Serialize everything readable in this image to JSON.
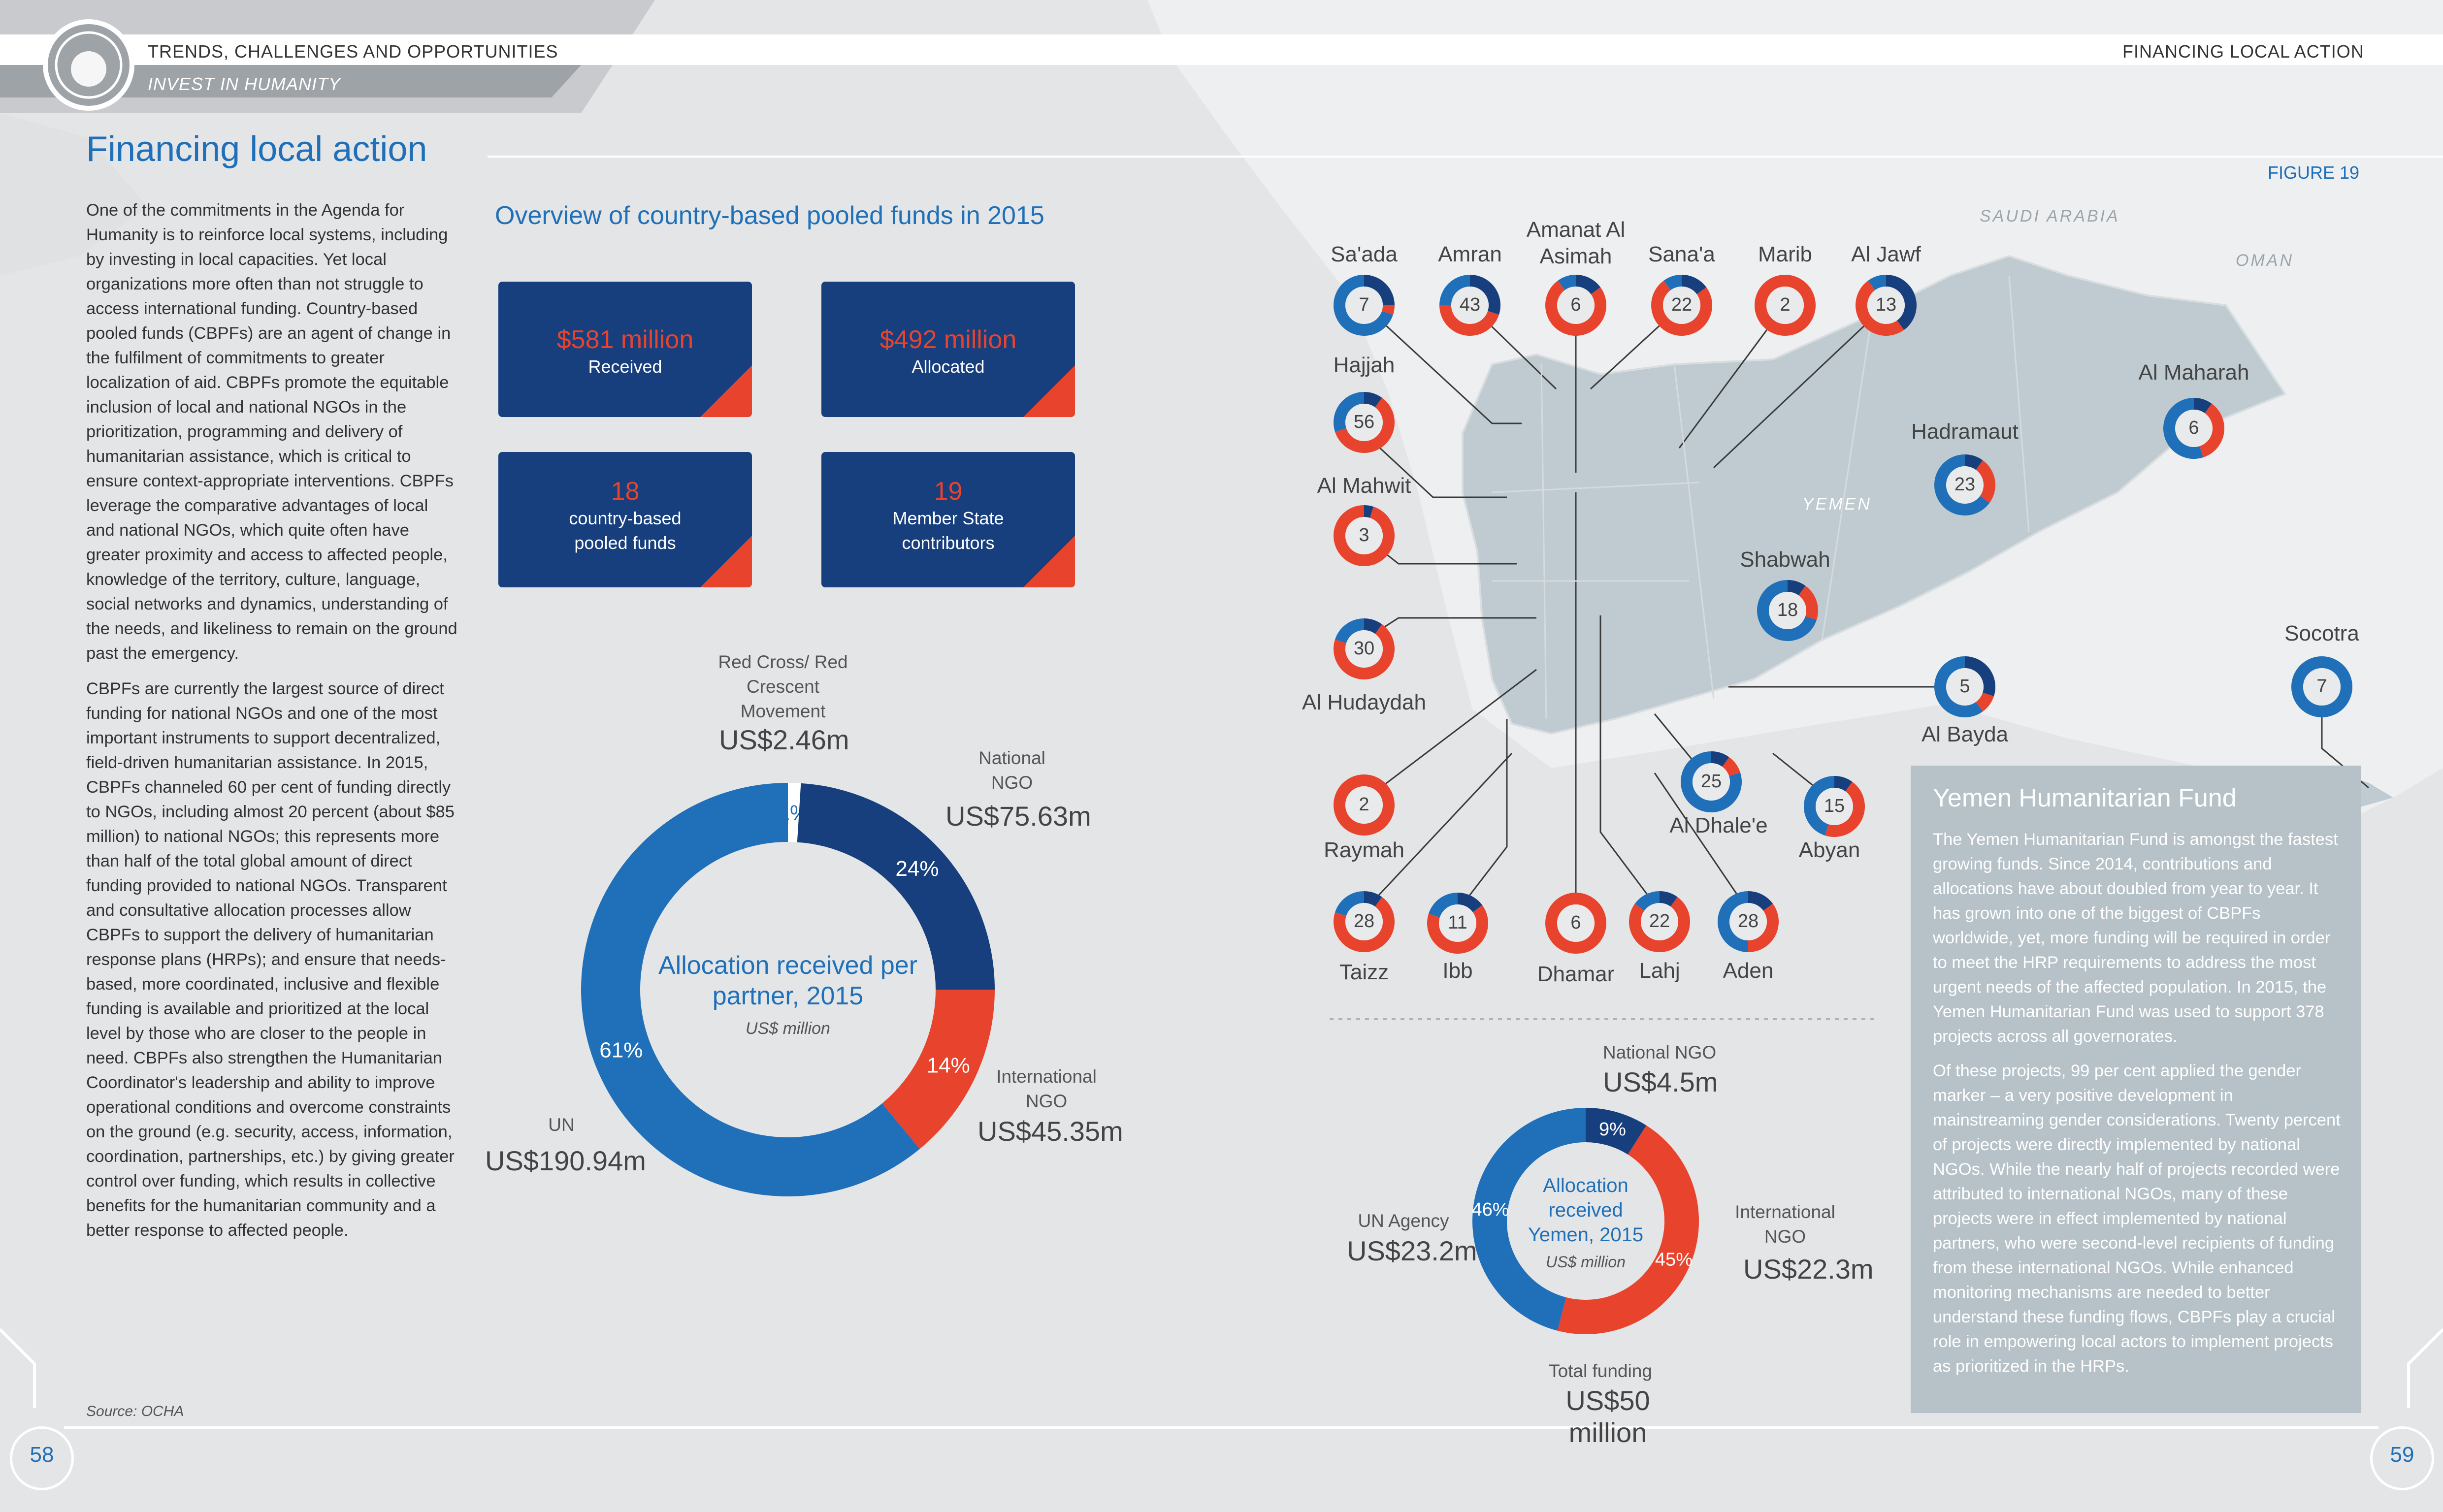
{
  "header": {
    "left_section": "TRENDS, CHALLENGES AND OPPORTUNITIES",
    "left_subsection": "INVEST IN HUMANITY",
    "right_section": "FINANCING LOCAL ACTION"
  },
  "colors": {
    "dark_blue": "#173f7e",
    "mid_blue": "#1f6fb9",
    "red": "#e8432d",
    "title_blue": "#1f70b8",
    "panel_grey": "#b6c2c8"
  },
  "page": {
    "title": "Financing local action",
    "body_p1": "One of the commitments in the Agenda for Humanity is to reinforce local systems, including by investing in local capacities. Yet local organizations more often than not struggle to access international funding. Country-based pooled funds (CBPFs) are an agent of change in the fulfilment of commitments to greater localization of aid. CBPFs promote the equitable inclusion of local and national NGOs in the prioritization, programming and delivery of humanitarian assistance, which is critical to ensure context-appropriate interventions. CBPFs leverage the comparative advantages of local and national NGOs, which quite often have greater proximity and access to affected people, knowledge of the territory, culture, language, social networks and dynamics, understanding of the needs, and likeliness to remain on the ground past the emergency.",
    "body_p2": "CBPFs are currently the largest source of direct funding for national NGOs and one of the most important instruments to support decentralized, field-driven humanitarian assistance. In 2015, CBPFs channeled 60 per cent of funding directly to NGOs, including almost 20 percent (about $85 million) to national NGOs; this represents more than half of the total global amount of direct funding provided to national NGOs. Transparent and consultative allocation processes allow CBPFs to support the delivery of humanitarian response plans (HRPs); and ensure that needs-based, more coordinated, inclusive and flexible funding is available and prioritized at the local level by those who are closer to the people in need. CBPFs also strengthen the Humanitarian Coordinator's leadership and ability to improve operational conditions and overcome constraints on the ground (e.g. security, access, information, coordination, partnerships, etc.) by giving greater control over funding, which results in collective benefits for the humanitarian community and a better response to affected people.",
    "source": "Source: OCHA",
    "page_left": "58",
    "page_right": "59",
    "figure": "FIGURE 19"
  },
  "overview": {
    "heading": "Overview of country-based pooled funds in 2015",
    "boxes": [
      {
        "value": "$581 million",
        "label": "Received"
      },
      {
        "value": "$492 million",
        "label": "Allocated"
      },
      {
        "value": "18",
        "label": "country-based pooled funds"
      },
      {
        "value": "19",
        "label": "Member State contributors"
      }
    ]
  },
  "chart_data": [
    {
      "type": "pie",
      "title": "Allocation received per partner, 2015",
      "subtitle": "US$ million",
      "slices": [
        {
          "name": "Red Cross/ Red Crescent Movement",
          "value": 2.46,
          "percent": 1,
          "amount": "US$2.46m",
          "color": "#ffffff"
        },
        {
          "name": "National NGO",
          "value": 75.63,
          "percent": 24,
          "amount": "US$75.63m",
          "color": "#173f7e"
        },
        {
          "name": "International NGO",
          "value": 45.35,
          "percent": 14,
          "amount": "US$45.35m",
          "color": "#e8432d"
        },
        {
          "name": "UN",
          "value": 190.94,
          "percent": 61,
          "amount": "US$190.94m",
          "color": "#1f6fb9"
        }
      ]
    },
    {
      "type": "pie",
      "title": "Allocation received Yemen, 2015",
      "subtitle": "US$ million",
      "slices": [
        {
          "name": "National NGO",
          "value": 4.5,
          "percent": 9,
          "amount": "US$4.5m",
          "color": "#173f7e"
        },
        {
          "name": "International NGO",
          "value": 22.3,
          "percent": 45,
          "amount": "US$22.3m",
          "color": "#e8432d"
        },
        {
          "name": "UN Agency",
          "value": 23.2,
          "percent": 46,
          "amount": "US$23.2m",
          "color": "#1f6fb9"
        }
      ],
      "total_label": "Total funding",
      "total_value": "US$50 million"
    }
  ],
  "map": {
    "countries": [
      "SAUDI ARABIA",
      "OMAN",
      "YEMEN"
    ],
    "governorates": [
      {
        "name": "Sa'ada",
        "count": "7",
        "shares": [
          0.25,
          0.05,
          0.7
        ]
      },
      {
        "name": "Amran",
        "count": "43",
        "shares": [
          0.3,
          0.45,
          0.25
        ]
      },
      {
        "name": "Amanat Al Asimah",
        "count": "6",
        "shares": [
          0.15,
          0.75,
          0.1
        ]
      },
      {
        "name": "Sana'a",
        "count": "22",
        "shares": [
          0.15,
          0.75,
          0.1
        ]
      },
      {
        "name": "Marib",
        "count": "2",
        "shares": [
          0,
          1,
          0
        ]
      },
      {
        "name": "Al Jawf",
        "count": "13",
        "shares": [
          0.4,
          0.5,
          0.1
        ]
      },
      {
        "name": "Hajjah",
        "count": "56",
        "shares": [
          0.1,
          0.6,
          0.3
        ]
      },
      {
        "name": "Al Mahwit",
        "count": "3",
        "shares": [
          0.05,
          0.95,
          0
        ]
      },
      {
        "name": "Al Hudaydah",
        "count": "30",
        "shares": [
          0.1,
          0.7,
          0.2
        ]
      },
      {
        "name": "Raymah",
        "count": "2",
        "shares": [
          0,
          1,
          0
        ]
      },
      {
        "name": "Taizz",
        "count": "28",
        "shares": [
          0.1,
          0.7,
          0.2
        ]
      },
      {
        "name": "Ibb",
        "count": "11",
        "shares": [
          0.15,
          0.65,
          0.2
        ]
      },
      {
        "name": "Dhamar",
        "count": "6",
        "shares": [
          0,
          1,
          0
        ]
      },
      {
        "name": "Lahj",
        "count": "22",
        "shares": [
          0.1,
          0.75,
          0.15
        ]
      },
      {
        "name": "Aden",
        "count": "28",
        "shares": [
          0.15,
          0.35,
          0.5
        ]
      },
      {
        "name": "Abyan",
        "count": "15",
        "shares": [
          0.1,
          0.45,
          0.45
        ]
      },
      {
        "name": "Al Dhale'e",
        "count": "25",
        "shares": [
          0.1,
          0.1,
          0.8
        ]
      },
      {
        "name": "Al Bayda",
        "count": "5",
        "shares": [
          0.3,
          0.1,
          0.6
        ]
      },
      {
        "name": "Shabwah",
        "count": "18",
        "shares": [
          0.1,
          0.2,
          0.7
        ]
      },
      {
        "name": "Hadramaut",
        "count": "23",
        "shares": [
          0.1,
          0.25,
          0.65
        ]
      },
      {
        "name": "Al Maharah",
        "count": "6",
        "shares": [
          0.1,
          0.35,
          0.55
        ]
      },
      {
        "name": "Socotra",
        "count": "7",
        "shares": [
          0,
          0,
          1
        ]
      }
    ]
  },
  "yhf": {
    "heading": "Yemen Humanitarian Fund",
    "p1": "The Yemen Humanitarian Fund is amongst the fastest growing funds. Since 2014, contributions and allocations have about doubled from year to year. It has grown into one of the biggest of CBPFs worldwide, yet, more funding will be required in order to meet the HRP requirements to address the most urgent needs of the affected population. In 2015, the Yemen Humanitarian Fund was used to support 378 projects across all governorates.",
    "p2": "Of these projects, 99 per cent applied the gender marker – a very positive development in mainstreaming gender considerations. Twenty percent of projects were directly implemented by national NGOs. While the nearly half of projects recorded were attributed to international NGOs, many of these projects were in effect implemented by national partners, who were second-level recipients of funding from these international NGOs. While enhanced monitoring mechanisms are needed to better understand these funding flows, CBPFs play a crucial role in empowering local actors to implement projects as prioritized in the HRPs."
  }
}
